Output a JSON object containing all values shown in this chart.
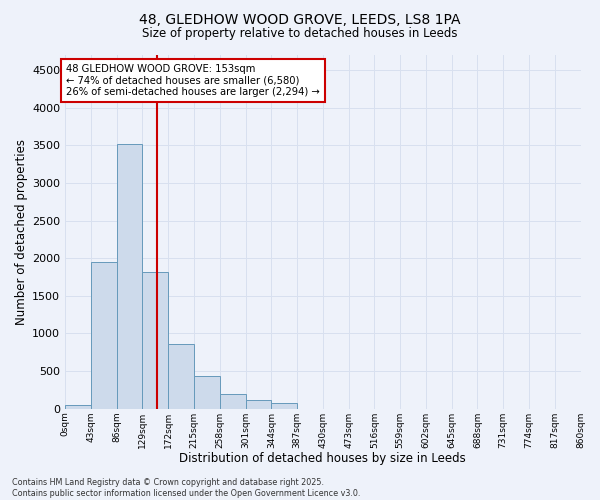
{
  "title_line1": "48, GLEDHOW WOOD GROVE, LEEDS, LS8 1PA",
  "title_line2": "Size of property relative to detached houses in Leeds",
  "xlabel": "Distribution of detached houses by size in Leeds",
  "ylabel": "Number of detached properties",
  "bar_edges": [
    0,
    43,
    86,
    129,
    172,
    215,
    258,
    301,
    344,
    387,
    430,
    473,
    516,
    559,
    602,
    645,
    688,
    731,
    774,
    817,
    860
  ],
  "bar_heights": [
    45,
    1950,
    3520,
    1810,
    855,
    435,
    195,
    115,
    70,
    0,
    0,
    0,
    0,
    0,
    0,
    0,
    0,
    0,
    0,
    0
  ],
  "bar_color": "#cddaeb",
  "bar_edge_color": "#6699bb",
  "bar_linewidth": 0.7,
  "vline_x": 153,
  "vline_color": "#cc0000",
  "vline_linewidth": 1.5,
  "annotation_line1": "48 GLEDHOW WOOD GROVE: 153sqm",
  "annotation_line2": "← 74% of detached houses are smaller (6,580)",
  "annotation_line3": "26% of semi-detached houses are larger (2,294) →",
  "annotation_box_facecolor": "#ffffff",
  "annotation_box_edgecolor": "#cc0000",
  "ylim": [
    0,
    4700
  ],
  "yticks": [
    0,
    500,
    1000,
    1500,
    2000,
    2500,
    3000,
    3500,
    4000,
    4500
  ],
  "tick_labels": [
    "0sqm",
    "43sqm",
    "86sqm",
    "129sqm",
    "172sqm",
    "215sqm",
    "258sqm",
    "301sqm",
    "344sqm",
    "387sqm",
    "430sqm",
    "473sqm",
    "516sqm",
    "559sqm",
    "602sqm",
    "645sqm",
    "688sqm",
    "731sqm",
    "774sqm",
    "817sqm",
    "860sqm"
  ],
  "grid_color": "#d8e0ef",
  "background_color": "#eef2fa",
  "footer_text": "Contains HM Land Registry data © Crown copyright and database right 2025.\nContains public sector information licensed under the Open Government Licence v3.0.",
  "fig_width": 6.0,
  "fig_height": 5.0,
  "dpi": 100
}
